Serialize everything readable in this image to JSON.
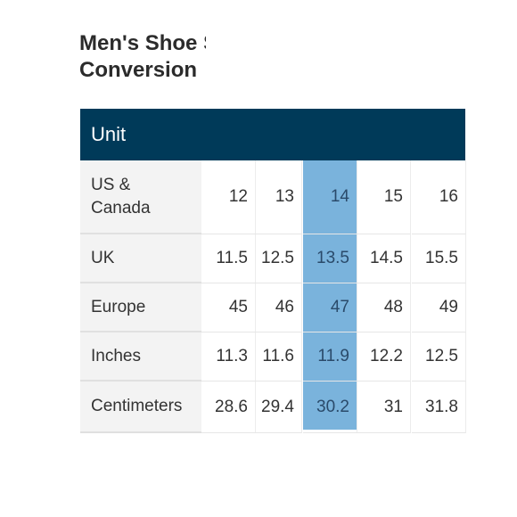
{
  "title_lines": [
    "Men's Shoe Size",
    "Conversion"
  ],
  "header": "Unit",
  "rows": [
    {
      "label_lines": [
        "US &",
        "Canada"
      ],
      "values": [
        "12",
        "13",
        "14",
        "15",
        "16"
      ]
    },
    {
      "label_lines": [
        "UK"
      ],
      "values": [
        "11.5",
        "12.5",
        "13.5",
        "14.5",
        "15.5"
      ]
    },
    {
      "label_lines": [
        "Europe"
      ],
      "values": [
        "45",
        "46",
        "47",
        "48",
        "49"
      ]
    },
    {
      "label_lines": [
        "Inches"
      ],
      "values": [
        "11.3",
        "11.6",
        "11.9",
        "12.2",
        "12.5"
      ]
    },
    {
      "label_lines": [
        "Centimeters"
      ],
      "values": [
        "28.6",
        "29.4",
        "30.2",
        "31",
        "31.8"
      ]
    }
  ],
  "highlight_column": 2,
  "colors": {
    "header_bg": "#003a59",
    "highlight": "#7ab3dc",
    "label_bg": "#f3f3f3"
  }
}
